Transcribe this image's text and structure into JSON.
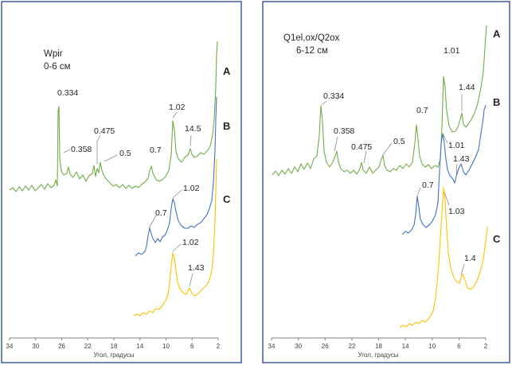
{
  "colors": {
    "A": "#70ad47",
    "B": "#4472c4",
    "C": "#ffc000",
    "frame": "#3d5f9e"
  },
  "chart_data": [
    {
      "type": "line",
      "title": "Wpir",
      "subtitle": "0-6 см",
      "xlabel": "Угол, градусы",
      "ylabel": "",
      "x_reversed": true,
      "xlim": [
        34,
        2
      ],
      "xticks": [
        "34",
        "30",
        "26",
        "22",
        "18",
        "14",
        "10",
        "6",
        "2"
      ],
      "grid": false,
      "series": [
        {
          "name": "A",
          "color": "#70ad47",
          "peaks": [
            {
              "label": "0.334",
              "x": 26.6
            },
            {
              "label": "0.358",
              "x": 24.9
            },
            {
              "label": "0.475",
              "x": 19.5
            },
            {
              "label": "0.5",
              "x": 17.8
            },
            {
              "label": "0.7",
              "x": 12.4
            },
            {
              "label": "1.02",
              "x": 8.8
            },
            {
              "label": "14.5",
              "x": 6.1
            }
          ]
        },
        {
          "name": "B",
          "color": "#4472c4",
          "peaks": [
            {
              "label": "0.7",
              "x": 12.4
            },
            {
              "label": "1.02",
              "x": 8.8
            }
          ]
        },
        {
          "name": "C",
          "color": "#ffc000",
          "peaks": [
            {
              "label": "1.02",
              "x": 8.8
            },
            {
              "label": "1.43",
              "x": 6.2
            }
          ]
        }
      ]
    },
    {
      "type": "line",
      "title": "Q1el,ox/Q2ox",
      "subtitle": "6-12 см",
      "xlabel": "Угол, градусы",
      "ylabel": "",
      "x_reversed": true,
      "xlim": [
        34,
        2
      ],
      "xticks": [
        "34",
        "30",
        "26",
        "22",
        "18",
        "14",
        "10",
        "6",
        "2"
      ],
      "grid": false,
      "series": [
        {
          "name": "A",
          "color": "#70ad47",
          "peaks": [
            {
              "label": "0.334",
              "x": 26.6
            },
            {
              "label": "0.358",
              "x": 24.9
            },
            {
              "label": "0.475",
              "x": 19.5
            },
            {
              "label": "0.5",
              "x": 17.8
            },
            {
              "label": "0.7",
              "x": 12.4
            },
            {
              "label": "1.01",
              "x": 8.8
            },
            {
              "label": "1.44",
              "x": 6.1
            }
          ]
        },
        {
          "name": "B",
          "color": "#4472c4",
          "peaks": [
            {
              "label": "0.7",
              "x": 12.4
            },
            {
              "label": "1.01",
              "x": 8.8
            },
            {
              "label": "1.43",
              "x": 6.2
            }
          ]
        },
        {
          "name": "C",
          "color": "#ffc000",
          "peaks": [
            {
              "label": "1.03",
              "x": 8.6
            },
            {
              "label": "1.4",
              "x": 6.3
            }
          ]
        }
      ]
    }
  ]
}
